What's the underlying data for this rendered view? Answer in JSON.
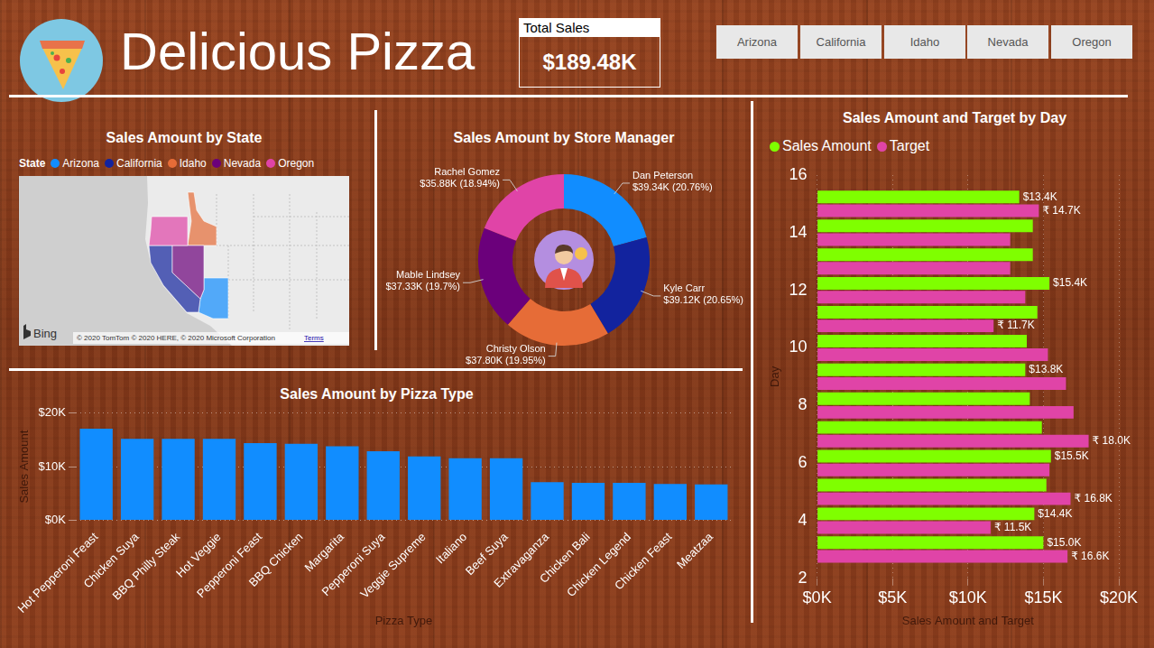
{
  "header": {
    "title": "Delicious Pizza",
    "card": {
      "label": "Total Sales",
      "value": "$189.48K"
    },
    "slicer": [
      "Arizona",
      "California",
      "Idaho",
      "Nevada",
      "Oregon"
    ]
  },
  "chart_data": [
    {
      "type": "map",
      "title": "Sales Amount by State",
      "legend_title": "State",
      "legend": "top-left",
      "categories": [
        "Arizona",
        "California",
        "Idaho",
        "Nevada",
        "Oregon"
      ],
      "colors": [
        "#118DFF",
        "#12239E",
        "#E66C37",
        "#6B007B",
        "#E044A7"
      ],
      "logo": "Bing",
      "attribution": "© 2020 TomTom © 2020 HERE, © 2020 Microsoft Corporation",
      "terms": "Terms"
    },
    {
      "type": "doughnut",
      "title": "Sales Amount by Store Manager",
      "categories": [
        "Dan Peterson",
        "Kyle Carr",
        "Christy Olson",
        "Mable Lindsey",
        "Rachel Gomez"
      ],
      "values": [
        39340,
        39120,
        37800,
        37330,
        35880
      ],
      "value_labels": [
        "$39.34K (20.76%)",
        "$39.12K (20.65%)",
        "$37.80K (19.95%)",
        "$37.33K (19.7%)",
        "$35.88K (18.94%)"
      ],
      "colors": [
        "#118DFF",
        "#12239E",
        "#E66C37",
        "#6B007B",
        "#E044A7"
      ],
      "data_labels": true
    },
    {
      "type": "bar",
      "title": "Sales Amount by Pizza Type",
      "x_label": "Pizza Type",
      "y_label": "Sales Amount",
      "categories": [
        "Hot Pepperoni Feast",
        "Chicken Suya",
        "BBQ Philly Steak",
        "Hot Veggie",
        "Pepperoni Feast",
        "BBQ Chicken",
        "Margarita",
        "Pepperoni Suya",
        "Veggie Supreme",
        "Italiano",
        "Beef Suya",
        "Extravaganza",
        "Chicken Bali",
        "Chicken Legend",
        "Chicken Feast",
        "Meatzaa"
      ],
      "values": [
        17100,
        15200,
        15200,
        15200,
        14400,
        14300,
        13800,
        12900,
        11900,
        11600,
        11600,
        7100,
        7000,
        7000,
        6800,
        6700
      ],
      "color": "#118DFF",
      "ylim": [
        0,
        20000
      ],
      "yticks": [
        {
          "value": 0,
          "label": "$0K"
        },
        {
          "value": 10000,
          "label": "$10K"
        },
        {
          "value": 20000,
          "label": "$20K"
        }
      ],
      "grid": true
    },
    {
      "type": "bar",
      "orientation": "horizontal",
      "title": "Sales Amount and Target by Day",
      "x_label": "Sales Amount and Target",
      "y_label": "Day",
      "legend": "top-left",
      "x": [
        3,
        4,
        5,
        6,
        7,
        8,
        9,
        10,
        11,
        12,
        13,
        14,
        15
      ],
      "series": [
        {
          "name": "Sales Amount",
          "color": "#7FFF00",
          "values": [
            15000,
            14400,
            15200,
            15500,
            14900,
            14100,
            13800,
            13900,
            14600,
            15400,
            14300,
            14300,
            13400
          ],
          "value_labels": [
            "$15.0K",
            "$14.4K",
            null,
            "$15.5K",
            null,
            null,
            "$13.8K",
            null,
            null,
            "$15.4K",
            null,
            null,
            "$13.4K"
          ]
        },
        {
          "name": "Target",
          "color": "#E044A7",
          "values": [
            16600,
            11500,
            16800,
            15400,
            18000,
            17000,
            16500,
            15300,
            11700,
            13800,
            12800,
            12800,
            14700
          ],
          "value_labels": [
            "₹ 16.6K",
            "₹ 11.5K",
            "₹ 16.8K",
            null,
            "₹ 18.0K",
            null,
            null,
            null,
            "₹ 11.7K",
            null,
            null,
            null,
            "₹ 14.7K"
          ]
        }
      ],
      "xlim": [
        0,
        20000
      ],
      "xticks": [
        {
          "value": 0,
          "label": "$0K"
        },
        {
          "value": 5000,
          "label": "$5K"
        },
        {
          "value": 10000,
          "label": "$10K"
        },
        {
          "value": 15000,
          "label": "$15K"
        },
        {
          "value": 20000,
          "label": "$20K"
        }
      ],
      "ylim": [
        2,
        16
      ],
      "yticks": [
        2,
        4,
        6,
        8,
        10,
        12,
        14,
        16
      ],
      "grid": true,
      "data_labels": true
    }
  ]
}
